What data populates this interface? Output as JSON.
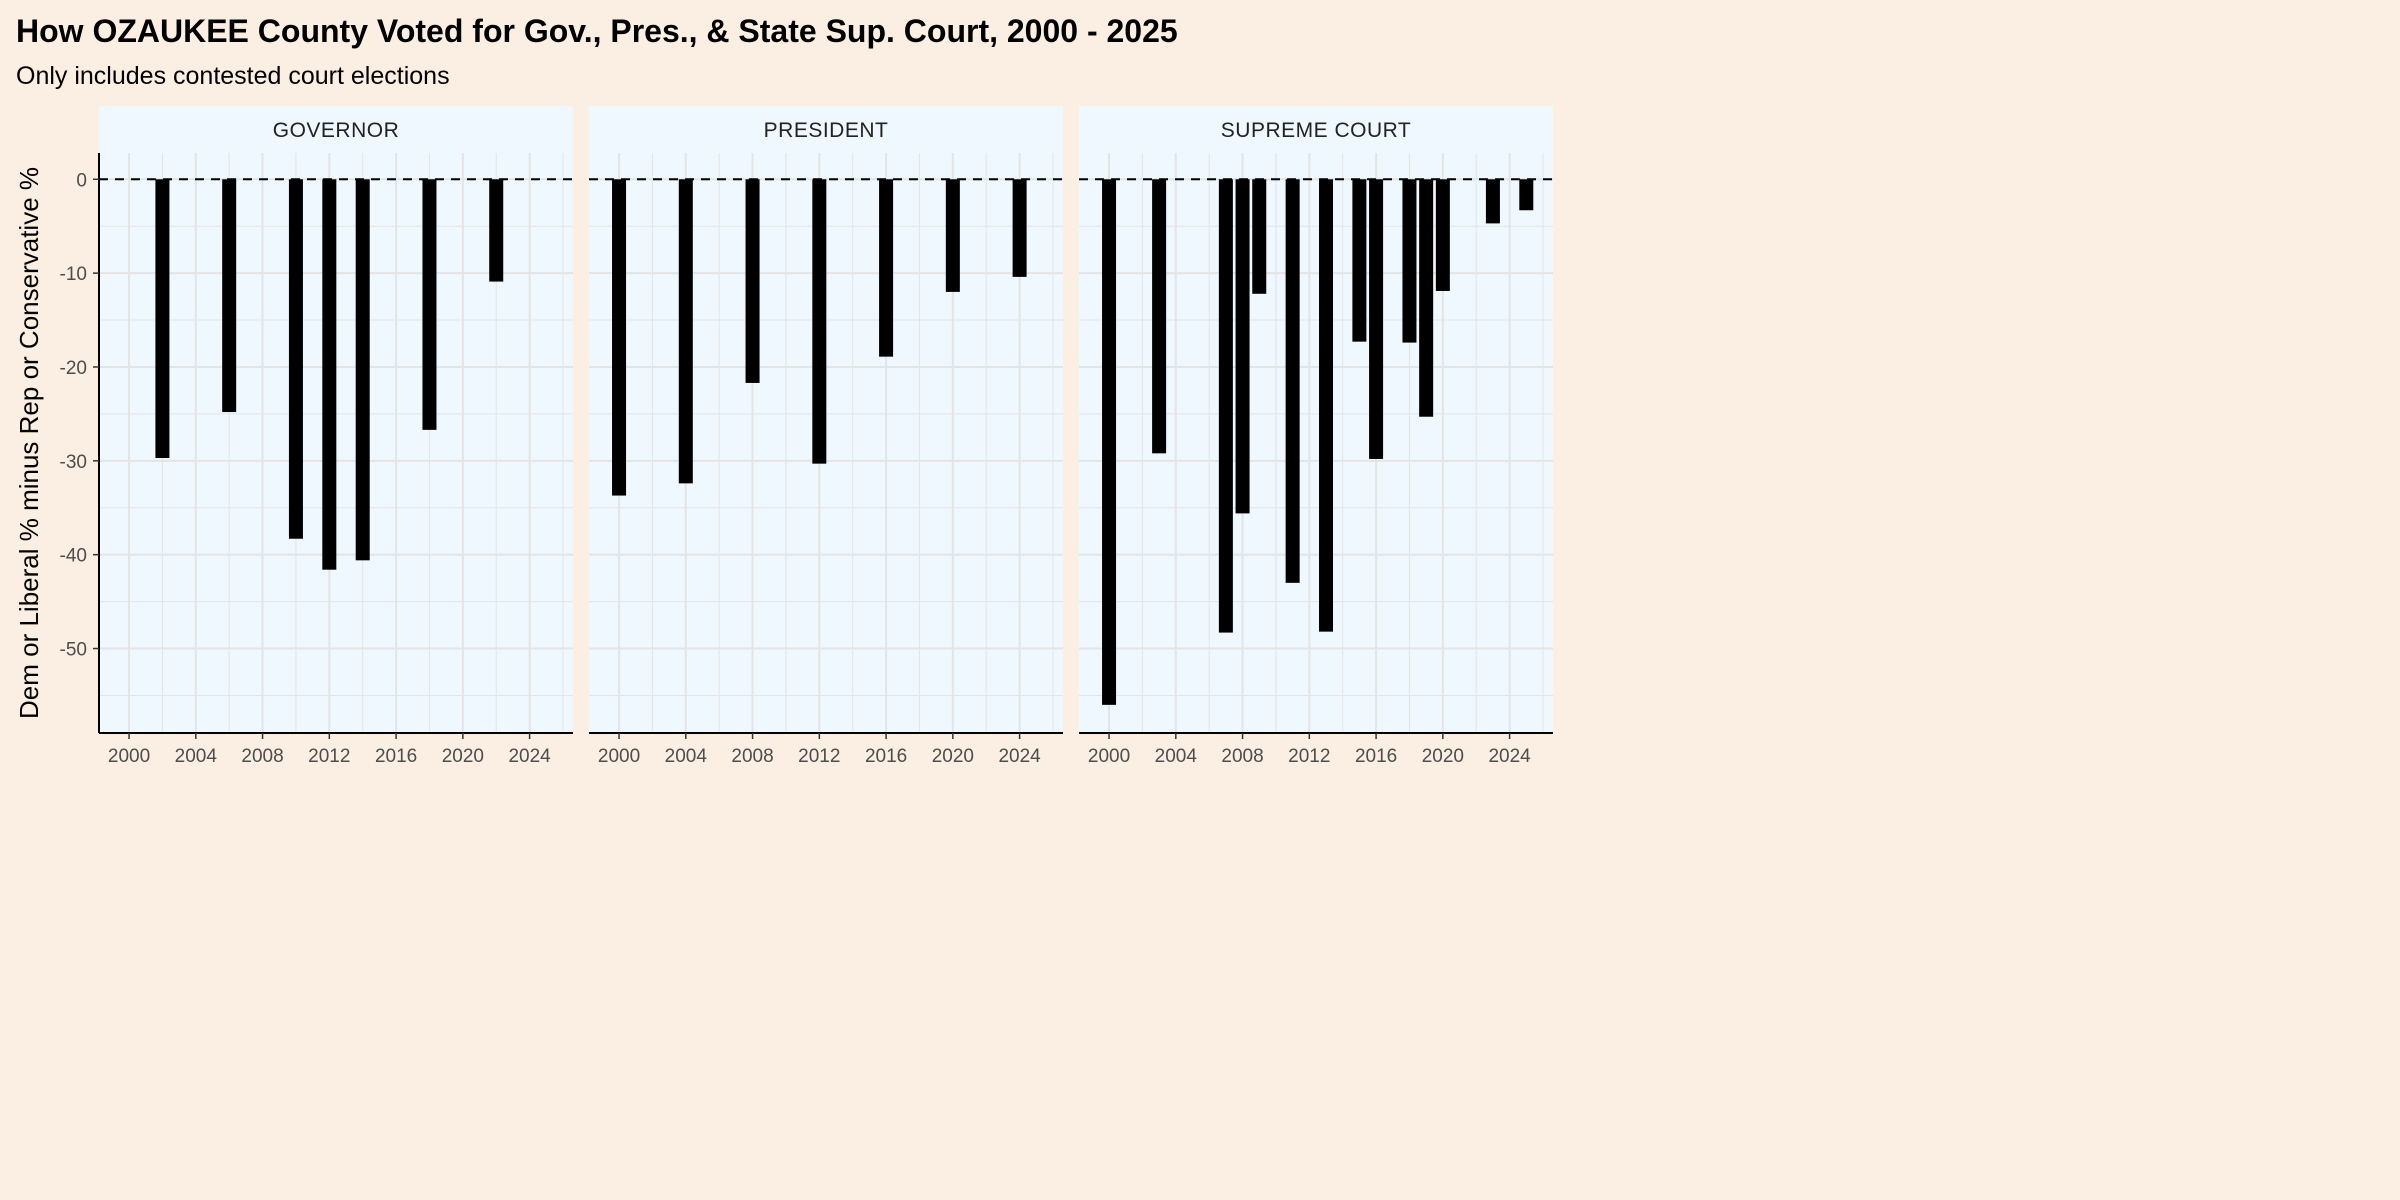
{
  "title": "How OZAUKEE County Voted for Gov., Pres., & State Sup. Court, 2000 - 2025",
  "subtitle": "Only includes contested court elections",
  "colors": {
    "background": "#fbeee3",
    "panel": "#eff7ff",
    "strip": "#eff7ff",
    "bar": "#000000",
    "grid": "#e4e4e4",
    "zero_line": "#000000"
  },
  "chart_data": {
    "type": "bar",
    "ylabel": "Dem or Liberal % minus Rep or Conservative %",
    "xlabel": "",
    "xlim": [
      1998.2,
      2026.6
    ],
    "ylim": [
      -59,
      2.8
    ],
    "x_ticks": [
      2000,
      2004,
      2008,
      2012,
      2016,
      2020,
      2024
    ],
    "y_ticks": [
      0,
      -10,
      -20,
      -30,
      -40,
      -50
    ],
    "zero_line": "dashed",
    "grid": true,
    "panels": [
      {
        "label": "GOVERNOR",
        "x": [
          2002,
          2006,
          2010,
          2012,
          2014,
          2018,
          2022
        ],
        "values": [
          -29.7,
          -24.8,
          -38.3,
          -41.6,
          -40.6,
          -26.7,
          -10.9
        ]
      },
      {
        "label": "PRESIDENT",
        "x": [
          2000,
          2004,
          2008,
          2012,
          2016,
          2020,
          2024
        ],
        "values": [
          -33.7,
          -32.4,
          -21.7,
          -30.3,
          -18.9,
          -12.0,
          -10.4
        ]
      },
      {
        "label": "SUPREME COURT",
        "x": [
          2000,
          2003,
          2007,
          2008,
          2009,
          2011,
          2013,
          2015,
          2016,
          2018,
          2019,
          2020,
          2023,
          2025
        ],
        "values": [
          -56.0,
          -29.2,
          -48.3,
          -35.6,
          -12.2,
          -43.0,
          -48.2,
          -17.3,
          -29.8,
          -17.4,
          -25.3,
          -11.9,
          -4.7,
          -3.3
        ]
      }
    ]
  }
}
